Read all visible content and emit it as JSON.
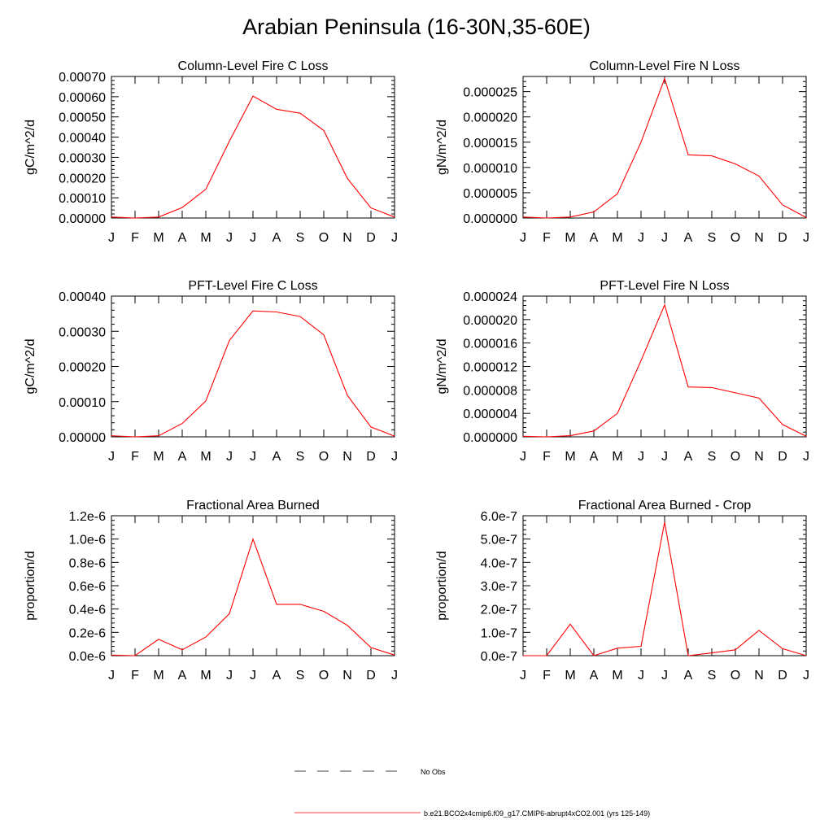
{
  "figure": {
    "title": "Arabian Peninsula (16-30N,35-60E)"
  },
  "legend": {
    "items": [
      {
        "label": "No Obs",
        "style": "dashed",
        "color": "#000000"
      },
      {
        "label": "b.e21.BCO2x4cmip6.f09_g17.CMIP6-abrupt4xCO2.001 (yrs 125-149)",
        "style": "solid",
        "color": "#ff0000"
      }
    ]
  },
  "chart_data": [
    {
      "type": "line",
      "title": "Column-Level Fire C Loss",
      "ylabel": "gC/m^2/d",
      "categories": [
        "J",
        "F",
        "M",
        "A",
        "M",
        "J",
        "J",
        "A",
        "S",
        "O",
        "N",
        "D",
        "J"
      ],
      "ylim": [
        0,
        0.0007
      ],
      "yticks": [
        0,
        0.0001,
        0.0002,
        0.0003,
        0.0004,
        0.0005,
        0.0006,
        0.0007
      ],
      "ytick_labels": [
        "0.00000",
        "0.00010",
        "0.00020",
        "0.00030",
        "0.00040",
        "0.00050",
        "0.00060",
        "0.00070"
      ],
      "series": [
        {
          "name": "b.e21.BCO2x4cmip6.f09_g17.CMIP6-abrupt4xCO2.001 (yrs 125-149)",
          "color": "#ff0000",
          "values": [
            5e-06,
            0.0,
            5e-06,
            5.2e-05,
            0.000142,
            0.00038,
            0.000603,
            0.000538,
            0.000518,
            0.000433,
            0.000196,
            5e-05,
            5e-06
          ]
        }
      ]
    },
    {
      "type": "line",
      "title": "Column-Level Fire N Loss",
      "ylabel": "gN/m^2/d",
      "categories": [
        "J",
        "F",
        "M",
        "A",
        "M",
        "J",
        "J",
        "A",
        "S",
        "O",
        "N",
        "D",
        "J"
      ],
      "ylim": [
        0,
        2.8e-05
      ],
      "yticks": [
        0,
        5e-06,
        1e-05,
        1.5e-05,
        2e-05,
        2.5e-05
      ],
      "ytick_labels": [
        "0.000000",
        "0.000005",
        "0.000010",
        "0.000015",
        "0.000020",
        "0.000025"
      ],
      "series": [
        {
          "name": "b.e21.BCO2x4cmip6.f09_g17.CMIP6-abrupt4xCO2.001 (yrs 125-149)",
          "color": "#ff0000",
          "values": [
            2e-07,
            0.0,
            2e-07,
            1.2e-06,
            4.8e-06,
            1.5e-05,
            2.76e-05,
            1.25e-05,
            1.23e-05,
            1.07e-05,
            8.3e-06,
            2.6e-06,
            1e-07
          ]
        }
      ]
    },
    {
      "type": "line",
      "title": "PFT-Level Fire C Loss",
      "ylabel": "gC/m^2/d",
      "categories": [
        "J",
        "F",
        "M",
        "A",
        "M",
        "J",
        "J",
        "A",
        "S",
        "O",
        "N",
        "D",
        "J"
      ],
      "ylim": [
        0,
        0.0004
      ],
      "yticks": [
        0,
        0.0001,
        0.0002,
        0.0003,
        0.0004
      ],
      "ytick_labels": [
        "0.00000",
        "0.00010",
        "0.00020",
        "0.00030",
        "0.00040"
      ],
      "series": [
        {
          "name": "b.e21.BCO2x4cmip6.f09_g17.CMIP6-abrupt4xCO2.001 (yrs 125-149)",
          "color": "#ff0000",
          "values": [
            3e-06,
            0.0,
            3e-06,
            3.8e-05,
            0.000102,
            0.000274,
            0.000358,
            0.000355,
            0.000342,
            0.00029,
            0.000118,
            2.8e-05,
            2e-06
          ]
        }
      ]
    },
    {
      "type": "line",
      "title": "PFT-Level Fire N Loss",
      "ylabel": "gN/m^2/d",
      "categories": [
        "J",
        "F",
        "M",
        "A",
        "M",
        "J",
        "J",
        "A",
        "S",
        "O",
        "N",
        "D",
        "J"
      ],
      "ylim": [
        0,
        2.4e-05
      ],
      "yticks": [
        0,
        4e-06,
        8e-06,
        1.2e-05,
        1.6e-05,
        2e-05,
        2.4e-05
      ],
      "ytick_labels": [
        "0.000000",
        "0.000004",
        "0.000008",
        "0.000012",
        "0.000016",
        "0.000020",
        "0.000024"
      ],
      "series": [
        {
          "name": "b.e21.BCO2x4cmip6.f09_g17.CMIP6-abrupt4xCO2.001 (yrs 125-149)",
          "color": "#ff0000",
          "values": [
            1e-07,
            0.0,
            2e-07,
            1e-06,
            4e-06,
            1.3e-05,
            2.25e-05,
            8.5e-06,
            8.4e-06,
            7.5e-06,
            6.6e-06,
            2.1e-06,
            1e-07
          ]
        }
      ]
    },
    {
      "type": "line",
      "title": "Fractional Area Burned",
      "ylabel": "proportion/d",
      "categories": [
        "J",
        "F",
        "M",
        "A",
        "M",
        "J",
        "J",
        "A",
        "S",
        "O",
        "N",
        "D",
        "J"
      ],
      "ylim": [
        0,
        1.2e-06
      ],
      "yticks": [
        0,
        2e-07,
        4e-07,
        6e-07,
        8e-07,
        1e-06,
        1.2e-06
      ],
      "ytick_labels": [
        "0.0e-6",
        "0.2e-6",
        "0.4e-6",
        "0.6e-6",
        "0.8e-6",
        "1.0e-6",
        "1.2e-6"
      ],
      "series": [
        {
          "name": "b.e21.BCO2x4cmip6.f09_g17.CMIP6-abrupt4xCO2.001 (yrs 125-149)",
          "color": "#ff0000",
          "values": [
            5e-09,
            0.0,
            1.4e-07,
            5e-08,
            1.6e-07,
            3.6e-07,
            1e-06,
            4.4e-07,
            4.4e-07,
            3.8e-07,
            2.6e-07,
            7e-08,
            5e-09
          ]
        }
      ]
    },
    {
      "type": "line",
      "title": "Fractional Area Burned - Crop",
      "ylabel": "proportion/d",
      "categories": [
        "J",
        "F",
        "M",
        "A",
        "M",
        "J",
        "J",
        "A",
        "S",
        "O",
        "N",
        "D",
        "J"
      ],
      "ylim": [
        0,
        6e-07
      ],
      "yticks": [
        0,
        1e-07,
        2e-07,
        3e-07,
        4e-07,
        5e-07,
        6e-07
      ],
      "ytick_labels": [
        "0.0e-7",
        "1.0e-7",
        "2.0e-7",
        "3.0e-7",
        "4.0e-7",
        "5.0e-7",
        "6.0e-7"
      ],
      "series": [
        {
          "name": "b.e21.BCO2x4cmip6.f09_g17.CMIP6-abrupt4xCO2.001 (yrs 125-149)",
          "color": "#ff0000",
          "values": [
            0.0,
            0.0,
            1.35e-07,
            0.0,
            3.2e-08,
            4e-08,
            5.72e-07,
            0.0,
            1.2e-08,
            2.5e-08,
            1.08e-07,
            3e-08,
            0.0
          ]
        }
      ]
    }
  ]
}
